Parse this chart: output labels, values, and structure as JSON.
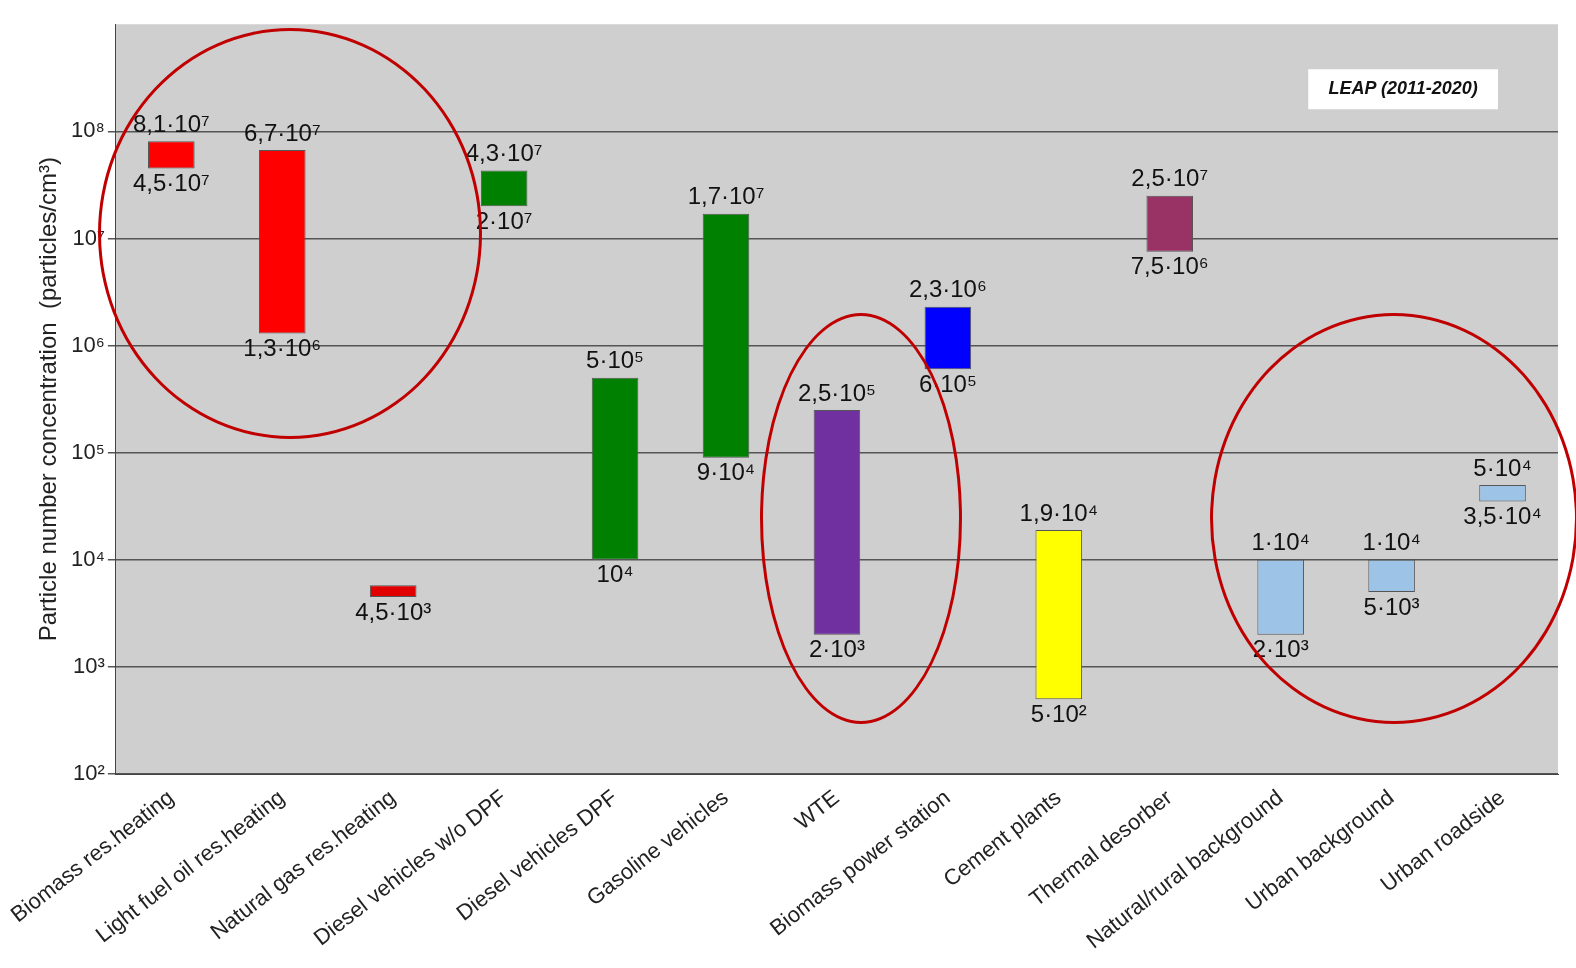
{
  "chart_data": {
    "type": "bar",
    "ylabel": "Particle number concentration  (particles/cm³)",
    "categories": [
      "Biomass res.heating",
      "Light fuel oil res.heating",
      "Natural gas res.heating",
      "Diesel vehicles w/o DPF",
      "Diesel vehicles DPF",
      "Gasoline vehicles",
      "WTE",
      "Biomass power station",
      "Cement plants",
      "Thermal desorber",
      "Natural/rural background",
      "Urban background",
      "Urban roadside"
    ],
    "base": [
      45000000,
      1300000,
      4500,
      20000000,
      10000,
      90000,
      2000,
      600000,
      500,
      7500000,
      2000,
      5000,
      35000
    ],
    "values": [
      36000000,
      65700000,
      1300,
      23000000,
      490000,
      16910000,
      248000,
      1700000,
      18500,
      17500000,
      8000,
      5000,
      15000
    ],
    "colors": [
      "#ff0000",
      "#ff0000",
      "#e00000",
      "#008000",
      "#008000",
      "#008000",
      "#7030a0",
      "#0000ff",
      "#ffff00",
      "#993366",
      "#9dc3e6",
      "#9dc3e6",
      "#9dc3e6"
    ],
    "log": true,
    "ylim": [
      100,
      1000000000
    ],
    "yticks": [
      {
        "value": 100,
        "label": "10²"
      },
      {
        "value": 1000,
        "label": "10³"
      },
      {
        "value": 10000,
        "label": "10⁴"
      },
      {
        "value": 100000,
        "label": "10⁵"
      },
      {
        "value": 1000000,
        "label": "10⁶"
      },
      {
        "value": 10000000,
        "label": "10⁷"
      },
      {
        "value": 100000000,
        "label": "10⁸"
      }
    ],
    "grid": "y",
    "legend": false,
    "annotations": [
      "LEAP (2011-2020)",
      {
        "text": "8,1·10⁷",
        "x": "Biomass res.heating",
        "y": 81000000
      },
      {
        "text": "4,5·10⁷",
        "x": "Biomass res.heating",
        "y": 45000000
      },
      {
        "text": "6,7·10⁷",
        "x": "Light fuel oil res.heating",
        "y": 67000000
      },
      {
        "text": "1,3·10⁶",
        "x": "Light fuel oil res.heating",
        "y": 1300000
      },
      {
        "text": "4,5·10³",
        "x": "Natural gas res.heating",
        "y": 4500
      },
      {
        "text": "4,3·10⁷",
        "x": "Diesel vehicles w/o DPF",
        "y": 43000000
      },
      {
        "text": "2·10⁷",
        "x": "Diesel vehicles w/o DPF",
        "y": 20000000
      },
      {
        "text": "5·10⁵",
        "x": "Diesel vehicles DPF",
        "y": 500000
      },
      {
        "text": "10⁴",
        "x": "Diesel vehicles DPF",
        "y": 10000
      },
      {
        "text": "1,7·10⁷",
        "x": "Gasoline vehicles",
        "y": 17000000
      },
      {
        "text": "9·10⁴",
        "x": "Gasoline vehicles",
        "y": 90000
      },
      {
        "text": "2,5·10⁵",
        "x": "WTE",
        "y": 250000
      },
      {
        "text": "2·10³",
        "x": "WTE",
        "y": 2000
      },
      {
        "text": "2,3·10⁶",
        "x": "Biomass power station",
        "y": 2300000
      },
      {
        "text": "6·10⁵",
        "x": "Biomass power station",
        "y": 600000
      },
      {
        "text": "1,9·10⁴",
        "x": "Cement plants",
        "y": 19000
      },
      {
        "text": "5·10²",
        "x": "Cement plants",
        "y": 500
      },
      {
        "text": "2,5·10⁷",
        "x": "Thermal desorber",
        "y": 25000000
      },
      {
        "text": "7,5·10⁶",
        "x": "Thermal desorber",
        "y": 7500000
      },
      {
        "text": "1·10⁴",
        "x": "Natural/rural background",
        "y": 10000
      },
      {
        "text": "2·10³",
        "x": "Natural/rural background",
        "y": 2000
      },
      {
        "text": "1·10⁴",
        "x": "Urban background",
        "y": 10000
      },
      {
        "text": "5·10³",
        "x": "Urban background",
        "y": 5000
      },
      {
        "text": "5·10⁴",
        "x": "Urban roadside",
        "y": 50000
      },
      {
        "text": "3,5·10⁴",
        "x": "Urban roadside",
        "y": 35000
      }
    ]
  }
}
